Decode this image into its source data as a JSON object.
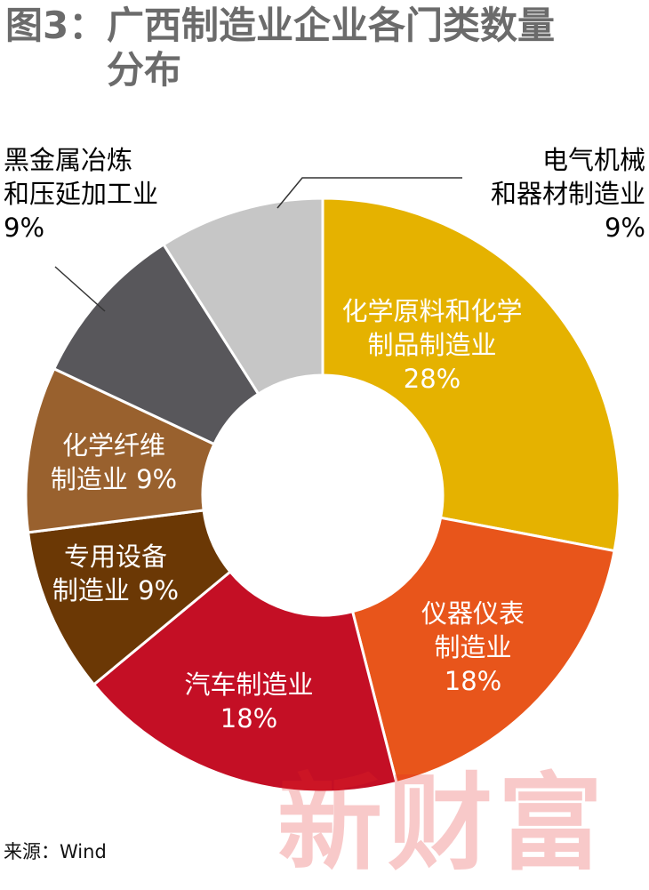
{
  "title": {
    "prefix": "图3：",
    "line1": "广西制造业企业各门类数量",
    "line2": "分布"
  },
  "chart_data": {
    "type": "pie",
    "donut": true,
    "title": "图3：广西制造业企业各门类数量分布",
    "slices": [
      {
        "label_lines": [
          "化学原料和化学",
          "制品制造业"
        ],
        "pct_text": "28%",
        "value": 28,
        "color": "#e5b200",
        "text_color": "#ffffff"
      },
      {
        "label_lines": [
          "仪器仪表",
          "制造业"
        ],
        "pct_text": "18%",
        "value": 18,
        "color": "#e8551b",
        "text_color": "#ffffff"
      },
      {
        "label_lines": [
          "汽车制造业"
        ],
        "pct_text": "18%",
        "value": 18,
        "color": "#c40f25",
        "text_color": "#ffffff"
      },
      {
        "label_lines": [
          "专用设备",
          "制造业 9%"
        ],
        "pct_text": "9%",
        "value": 9,
        "color": "#6b3805",
        "text_color": "#ffffff"
      },
      {
        "label_lines": [
          "化学纤维",
          "制造业 9%"
        ],
        "pct_text": "9%",
        "value": 9,
        "color": "#99612e",
        "text_color": "#ffffff"
      },
      {
        "label_lines": [
          "黑金属冶炼",
          "和压延加工业",
          "9%"
        ],
        "pct_text": "9%",
        "value": 9,
        "color": "#58575b",
        "text_color": "#000000"
      },
      {
        "label_lines": [
          "电气机械",
          "和器材制造业",
          "9%"
        ],
        "pct_text": "9%",
        "value": 9,
        "color": "#c6c6c6",
        "text_color": "#000000"
      }
    ]
  },
  "source": "来源：Wind",
  "watermark": "新财富"
}
